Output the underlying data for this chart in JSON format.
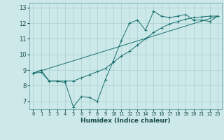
{
  "xlabel": "Humidex (Indice chaleur)",
  "bg_color": "#cce8e8",
  "line_color": "#1a7070",
  "grid_color": "#aacfcf",
  "xlim": [
    -0.5,
    23.5
  ],
  "ylim": [
    6.5,
    13.3
  ],
  "yticks": [
    7,
    8,
    9,
    10,
    11,
    12,
    13
  ],
  "xticks": [
    0,
    1,
    2,
    3,
    4,
    5,
    6,
    7,
    8,
    9,
    10,
    11,
    12,
    13,
    14,
    15,
    16,
    17,
    18,
    19,
    20,
    21,
    22,
    23
  ],
  "series1_x": [
    0,
    1,
    2,
    3,
    4,
    5,
    6,
    7,
    8,
    9,
    10,
    11,
    12,
    13,
    14,
    15,
    16,
    17,
    18,
    19,
    20,
    21,
    22,
    23
  ],
  "series1_y": [
    8.8,
    9.0,
    8.3,
    8.3,
    8.2,
    6.65,
    7.3,
    7.25,
    7.0,
    8.4,
    9.6,
    10.9,
    12.0,
    12.2,
    11.55,
    12.75,
    12.45,
    12.35,
    12.45,
    12.55,
    12.2,
    12.2,
    12.1,
    12.45
  ],
  "series2_x": [
    0,
    1,
    2,
    3,
    4,
    5,
    6,
    7,
    8,
    9,
    10,
    11,
    12,
    13,
    14,
    15,
    16,
    17,
    18,
    19,
    20,
    21,
    22,
    23
  ],
  "series2_y": [
    8.8,
    8.85,
    8.3,
    8.3,
    8.3,
    8.3,
    8.5,
    8.7,
    8.9,
    9.1,
    9.5,
    9.9,
    10.2,
    10.6,
    11.0,
    11.4,
    11.7,
    11.95,
    12.1,
    12.25,
    12.35,
    12.4,
    12.45,
    12.45
  ],
  "series3_x": [
    0,
    23
  ],
  "series3_y": [
    8.8,
    12.45
  ]
}
